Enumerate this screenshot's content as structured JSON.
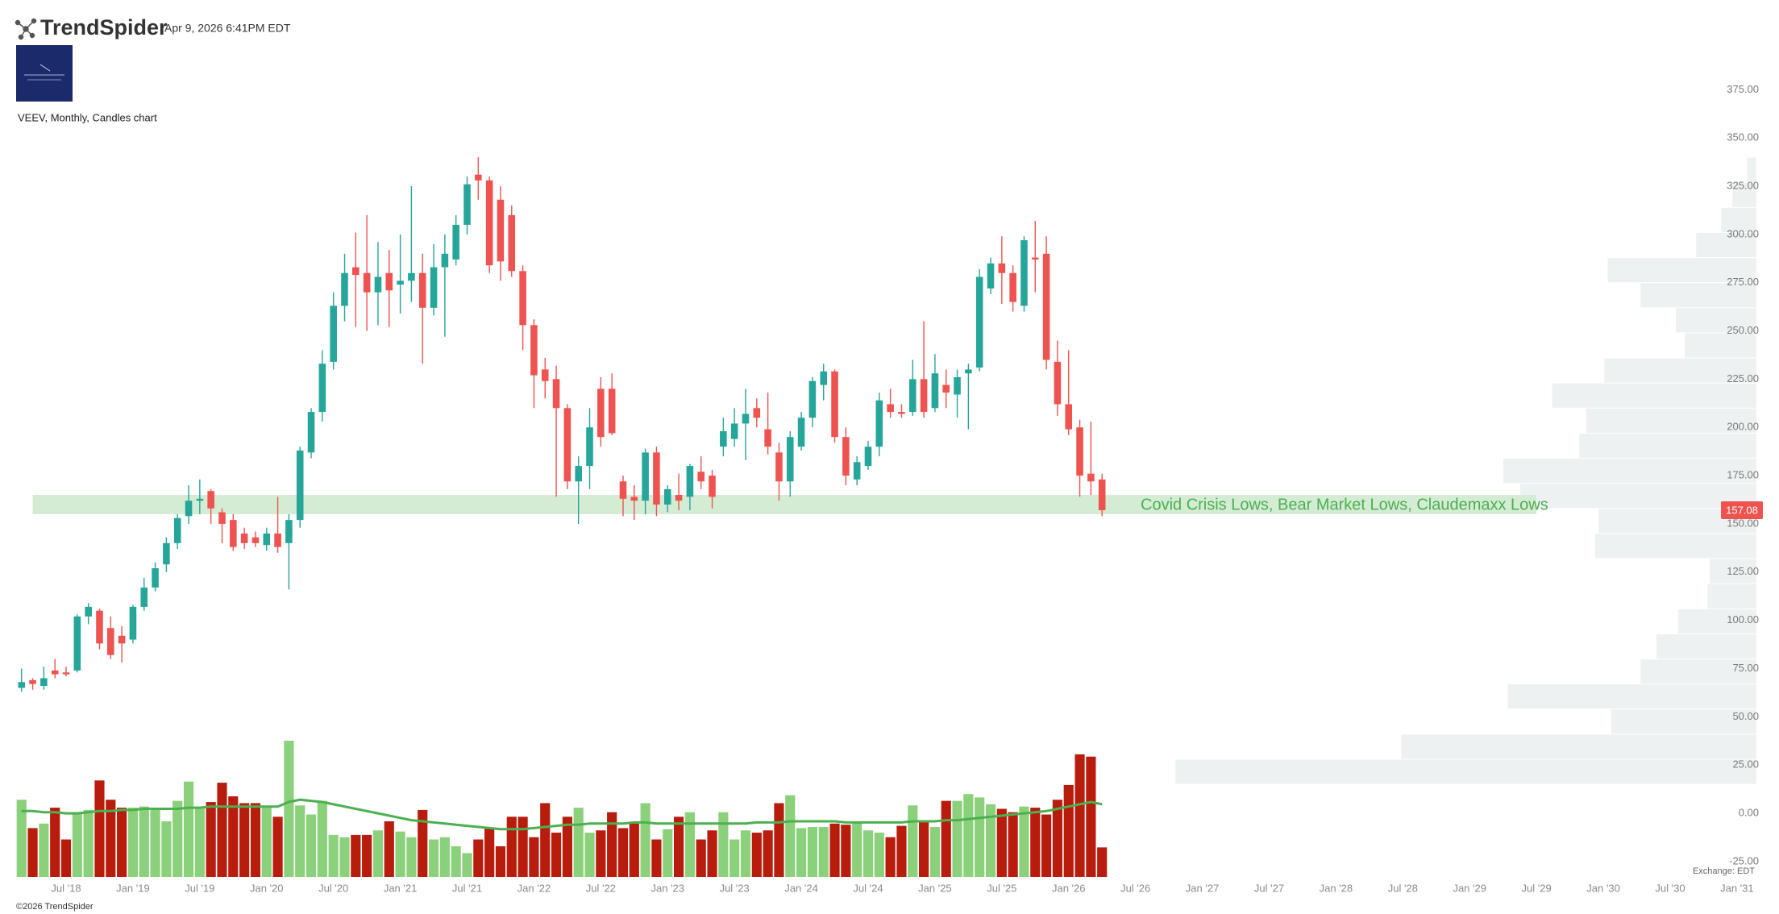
{
  "header": {
    "brand": "TrendSpider",
    "timestamp": "Apr 9, 2026 6:41PM EDT",
    "chart_label": "VEEV, Monthly, Candles chart",
    "copyright": "©2026 TrendSpider",
    "exchange": "Exchange: EDT"
  },
  "chart_data": {
    "type": "candlestick",
    "x": [
      "2018-03",
      "2018-04",
      "2018-05",
      "2018-06",
      "2018-07",
      "2018-08",
      "2018-09",
      "2018-10",
      "2018-11",
      "2018-12",
      "2019-01",
      "2019-02",
      "2019-03",
      "2019-04",
      "2019-05",
      "2019-06",
      "2019-07",
      "2019-08",
      "2019-09",
      "2019-10",
      "2019-11",
      "2019-12",
      "2020-01",
      "2020-02",
      "2020-03",
      "2020-04",
      "2020-05",
      "2020-06",
      "2020-07",
      "2020-08",
      "2020-09",
      "2020-10",
      "2020-11",
      "2020-12",
      "2021-01",
      "2021-02",
      "2021-03",
      "2021-04",
      "2021-05",
      "2021-06",
      "2021-07",
      "2021-08",
      "2021-09",
      "2021-10",
      "2021-11",
      "2021-12",
      "2022-01",
      "2022-02",
      "2022-03",
      "2022-04",
      "2022-05",
      "2022-06",
      "2022-07",
      "2022-08",
      "2022-09",
      "2022-10",
      "2022-11",
      "2022-12",
      "2023-01",
      "2023-02",
      "2023-03",
      "2023-04",
      "2023-05",
      "2023-06",
      "2023-07",
      "2023-08",
      "2023-09",
      "2023-10",
      "2023-11",
      "2023-12",
      "2024-01",
      "2024-02",
      "2024-03",
      "2024-04",
      "2024-05",
      "2024-06",
      "2024-07",
      "2024-08",
      "2024-09",
      "2024-10",
      "2024-11",
      "2024-12",
      "2025-01",
      "2025-02",
      "2025-03",
      "2025-04",
      "2025-05",
      "2025-06",
      "2025-07",
      "2025-08",
      "2025-09",
      "2025-10",
      "2025-11",
      "2025-12",
      "2026-01",
      "2026-02",
      "2026-03",
      "2026-04"
    ],
    "open": [
      65,
      69,
      66,
      74,
      73,
      74,
      102,
      105,
      96,
      92,
      90,
      107,
      117,
      129,
      140,
      154,
      162,
      167,
      156,
      152,
      145,
      143,
      139,
      145,
      140,
      152,
      187,
      208,
      234,
      263,
      283,
      280,
      270,
      280,
      274,
      276,
      280,
      262,
      283,
      287,
      305,
      331,
      328,
      318,
      310,
      281,
      253,
      230,
      225,
      210,
      172,
      180,
      220,
      220,
      172,
      164,
      162,
      187,
      160,
      165,
      164,
      177,
      175,
      190,
      194,
      202,
      210,
      199,
      187,
      172,
      190,
      205,
      222,
      229,
      195,
      173,
      180,
      190,
      212,
      208,
      208,
      225,
      210,
      222,
      217,
      228,
      231,
      272,
      285,
      280,
      263,
      288,
      290,
      234,
      212,
      200,
      176,
      173
    ],
    "high": [
      75,
      70,
      76,
      80,
      76,
      103,
      109,
      106,
      102,
      97,
      108,
      122,
      130,
      143,
      155,
      170,
      173,
      168,
      158,
      155,
      148,
      146,
      148,
      164,
      155,
      190,
      210,
      240,
      270,
      290,
      301,
      310,
      296,
      292,
      300,
      325,
      290,
      295,
      300,
      310,
      330,
      340,
      330,
      325,
      315,
      284,
      256,
      236,
      232,
      212,
      185,
      210,
      226,
      228,
      175,
      170,
      189,
      190,
      170,
      176,
      181,
      185,
      178,
      205,
      210,
      220,
      215,
      218,
      192,
      198,
      208,
      226,
      233,
      230,
      200,
      185,
      193,
      218,
      220,
      212,
      235,
      255,
      238,
      230,
      230,
      233,
      282,
      288,
      299,
      284,
      299,
      307,
      299,
      245,
      240,
      204,
      203,
      176
    ],
    "low": [
      63,
      64,
      64,
      70,
      71,
      73,
      98,
      85,
      80,
      78,
      88,
      105,
      115,
      125,
      137,
      150,
      155,
      150,
      140,
      136,
      137,
      138,
      136,
      135,
      116,
      148,
      184,
      203,
      230,
      255,
      252,
      250,
      253,
      252,
      259,
      265,
      233,
      258,
      247,
      284,
      300,
      318,
      280,
      276,
      278,
      240,
      210,
      215,
      164,
      168,
      150,
      168,
      190,
      196,
      154,
      152,
      155,
      154,
      156,
      157,
      157,
      168,
      158,
      185,
      190,
      183,
      200,
      186,
      162,
      164,
      188,
      200,
      214,
      192,
      170,
      170,
      178,
      185,
      205,
      205,
      206,
      205,
      208,
      210,
      205,
      199,
      229,
      269,
      264,
      260,
      260,
      270,
      230,
      206,
      196,
      164,
      165,
      154
    ],
    "close": [
      68,
      67,
      70,
      72,
      72,
      102,
      107,
      88,
      82,
      88,
      107,
      117,
      127,
      140,
      153,
      162,
      163,
      158,
      150,
      138,
      140,
      140,
      145,
      138,
      152,
      188,
      208,
      233,
      263,
      280,
      279,
      270,
      278,
      271,
      276,
      280,
      262,
      283,
      290,
      305,
      326,
      328,
      284,
      286,
      281,
      253,
      227,
      224,
      210,
      172,
      180,
      200,
      195,
      197,
      163,
      162,
      187,
      160,
      168,
      162,
      180,
      172,
      164,
      198,
      202,
      207,
      205,
      190,
      172,
      195,
      205,
      224,
      229,
      195,
      175,
      182,
      190,
      214,
      208,
      207,
      225,
      208,
      228,
      218,
      226,
      230,
      278,
      285,
      280,
      265,
      297,
      287,
      235,
      212,
      199,
      175,
      172,
      157.08
    ],
    "volume": [
      68,
      43,
      47,
      61,
      33,
      57,
      59,
      85,
      68,
      61,
      61,
      62,
      61,
      49,
      67,
      84,
      61,
      66,
      83,
      71,
      65,
      65,
      61,
      53,
      120,
      63,
      55,
      67,
      37,
      35,
      37,
      37,
      41,
      49,
      40,
      35,
      59,
      33,
      35,
      27,
      21,
      33,
      43,
      27,
      53,
      53,
      35,
      65,
      39,
      53,
      61,
      39,
      41,
      57,
      43,
      47,
      65,
      33,
      42,
      53,
      57,
      33,
      41,
      57,
      33,
      41,
      39,
      41,
      65,
      72,
      43,
      44,
      44,
      47,
      46,
      49,
      41,
      39,
      35,
      45,
      63,
      50,
      44,
      67,
      67,
      73,
      70,
      64,
      60,
      57,
      62,
      61,
      55,
      68,
      81,
      108,
      106,
      26
    ],
    "volume_ma": [
      58,
      58,
      57,
      57,
      56,
      56,
      57,
      58,
      58,
      59,
      59,
      60,
      60,
      60,
      60,
      61,
      61,
      62,
      62,
      62,
      62,
      62,
      62,
      62,
      66,
      68,
      67,
      66,
      64,
      62,
      60,
      58,
      56,
      54,
      52,
      50,
      49,
      48,
      47,
      46,
      45,
      44,
      43,
      42,
      42,
      42,
      43,
      44,
      45,
      46,
      46,
      47,
      47,
      47,
      47,
      48,
      48,
      47,
      47,
      47,
      47,
      47,
      47,
      47,
      47,
      47,
      48,
      48,
      48,
      49,
      49,
      49,
      49,
      49,
      48,
      48,
      48,
      48,
      48,
      48,
      49,
      49,
      49,
      50,
      50,
      51,
      52,
      53,
      54,
      55,
      56,
      57,
      58,
      60,
      62,
      64,
      66,
      64
    ],
    "colors": {
      "up": "#26a69a",
      "down": "#ef5350",
      "volume_up": "#8bd17c",
      "volume_down": "#b71c0c",
      "volume_ma": "#4caf50",
      "profile": "#eef1f2",
      "zone": "#d4ecd4",
      "zone_text": "#4caf50"
    },
    "xlim": [
      "2018-03",
      "2031-01"
    ],
    "ylim": [
      -33,
      386
    ],
    "yticks": [
      {
        "value": -25,
        "label": "-25.00"
      },
      {
        "value": 0,
        "label": "0.00"
      },
      {
        "value": 25,
        "label": "25.00"
      },
      {
        "value": 50,
        "label": "50.00"
      },
      {
        "value": 75,
        "label": "75.00"
      },
      {
        "value": 100,
        "label": "100.00"
      },
      {
        "value": 125,
        "label": "125.00"
      },
      {
        "value": 150,
        "label": "150.00"
      },
      {
        "value": 175,
        "label": "175.00"
      },
      {
        "value": 200,
        "label": "200.00"
      },
      {
        "value": 225,
        "label": "225.00"
      },
      {
        "value": 250,
        "label": "250.00"
      },
      {
        "value": 275,
        "label": "275.00"
      },
      {
        "value": 300,
        "label": "300.00"
      },
      {
        "value": 325,
        "label": "325.00"
      },
      {
        "value": 350,
        "label": "350.00"
      },
      {
        "value": 375,
        "label": "375.00"
      }
    ],
    "xticks": [
      {
        "value": "2018-07",
        "label": "Jul '18"
      },
      {
        "value": "2019-01",
        "label": "Jan '19"
      },
      {
        "value": "2019-07",
        "label": "Jul '19"
      },
      {
        "value": "2020-01",
        "label": "Jan '20"
      },
      {
        "value": "2020-07",
        "label": "Jul '20"
      },
      {
        "value": "2021-01",
        "label": "Jan '21"
      },
      {
        "value": "2021-07",
        "label": "Jul '21"
      },
      {
        "value": "2022-01",
        "label": "Jan '22"
      },
      {
        "value": "2022-07",
        "label": "Jul '22"
      },
      {
        "value": "2023-01",
        "label": "Jan '23"
      },
      {
        "value": "2023-07",
        "label": "Jul '23"
      },
      {
        "value": "2024-01",
        "label": "Jan '24"
      },
      {
        "value": "2024-07",
        "label": "Jul '24"
      },
      {
        "value": "2025-01",
        "label": "Jan '25"
      },
      {
        "value": "2025-07",
        "label": "Jul '25"
      },
      {
        "value": "2026-01",
        "label": "Jan '26"
      },
      {
        "value": "2026-07",
        "label": "Jul '26"
      },
      {
        "value": "2027-01",
        "label": "Jan '27"
      },
      {
        "value": "2027-07",
        "label": "Jul '27"
      },
      {
        "value": "2028-01",
        "label": "Jan '28"
      },
      {
        "value": "2028-07",
        "label": "Jul '28"
      },
      {
        "value": "2029-01",
        "label": "Jan '29"
      },
      {
        "value": "2029-07",
        "label": "Jul '29"
      },
      {
        "value": "2030-01",
        "label": "Jan '30"
      },
      {
        "value": "2030-07",
        "label": "Jul '30"
      },
      {
        "value": "2031-01",
        "label": "Jan '31"
      }
    ],
    "zone": {
      "low": 155,
      "high": 165,
      "from": "2018-04",
      "to": "2029-07",
      "label": "Covid Crisis Lows, Bear Market Lows, Claudemaxx Lows"
    },
    "profile": {
      "bins": [
        15,
        28,
        41,
        54,
        67,
        80,
        93,
        106,
        119,
        132,
        145,
        158,
        171,
        184,
        197,
        210,
        223,
        236,
        249,
        262,
        275,
        288,
        301,
        314,
        327,
        340
      ],
      "counts": [
        512,
        313,
        128,
        219,
        102,
        88,
        69,
        43,
        41,
        142,
        139,
        208,
        223,
        156,
        150,
        180,
        134,
        63,
        71,
        102,
        131,
        53,
        31,
        21,
        8
      ]
    }
  }
}
